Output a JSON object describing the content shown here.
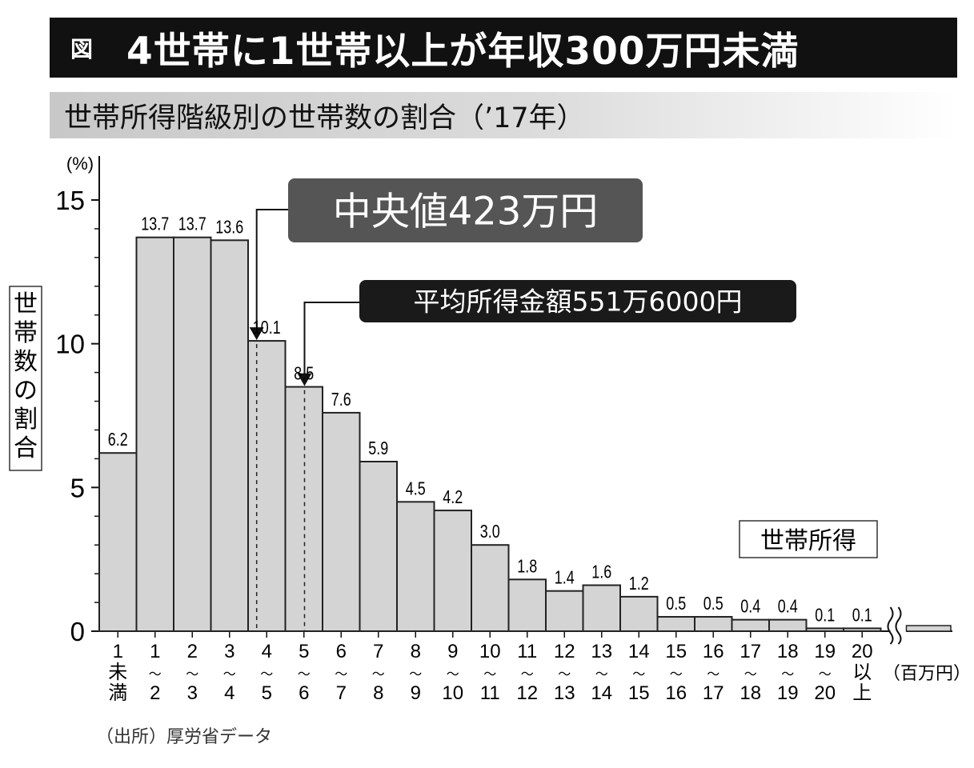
{
  "header": {
    "tag": "図",
    "title": "4世帯に1世帯以上が年収300万円未満",
    "subtitle": "世帯所得階級別の世帯数の割合（’17年）"
  },
  "source": "（出所）厚労省データ",
  "chart_data": {
    "type": "bar",
    "title": "世帯所得階級別の世帯数の割合（’17年）",
    "ylabel": "世帯数の割合",
    "yunit": "(%)",
    "xlabel": "世帯所得",
    "xunit": "（百万円）",
    "ylim": [
      0,
      15
    ],
    "yticks": [
      0,
      5,
      10,
      15
    ],
    "grid": false,
    "categories": [
      "1未満",
      "1〜2",
      "2〜3",
      "3〜4",
      "4〜5",
      "5〜6",
      "6〜7",
      "7〜8",
      "8〜9",
      "9〜10",
      "10〜11",
      "11〜12",
      "12〜13",
      "13〜14",
      "14〜15",
      "15〜16",
      "16〜17",
      "17〜18",
      "18〜19",
      "19〜20",
      "20以上"
    ],
    "tick_labels": [
      [
        "1",
        "未",
        "満"
      ],
      [
        "1",
        "〜",
        "2"
      ],
      [
        "2",
        "〜",
        "3"
      ],
      [
        "3",
        "〜",
        "4"
      ],
      [
        "4",
        "〜",
        "5"
      ],
      [
        "5",
        "〜",
        "6"
      ],
      [
        "6",
        "〜",
        "7"
      ],
      [
        "7",
        "〜",
        "8"
      ],
      [
        "8",
        "〜",
        "9"
      ],
      [
        "9",
        "〜",
        "10"
      ],
      [
        "10",
        "〜",
        "11"
      ],
      [
        "11",
        "〜",
        "12"
      ],
      [
        "12",
        "〜",
        "13"
      ],
      [
        "13",
        "〜",
        "14"
      ],
      [
        "14",
        "〜",
        "15"
      ],
      [
        "15",
        "〜",
        "16"
      ],
      [
        "16",
        "〜",
        "17"
      ],
      [
        "17",
        "〜",
        "18"
      ],
      [
        "18",
        "〜",
        "19"
      ],
      [
        "19",
        "〜",
        "20"
      ],
      [
        "20",
        "以",
        "上"
      ]
    ],
    "values": [
      6.2,
      13.7,
      13.7,
      13.6,
      10.1,
      8.5,
      7.6,
      5.9,
      4.5,
      4.2,
      3.0,
      1.8,
      1.4,
      1.6,
      1.2,
      0.5,
      0.5,
      0.4,
      0.4,
      0.1,
      0.1
    ],
    "annotations": [
      {
        "label": "中央値423万円",
        "x": 4.23
      },
      {
        "label": "平均所得金額551万6000円",
        "x": 5.516
      }
    ],
    "colors": {
      "bar": "#d4d4d4",
      "bar_stroke": "#222222",
      "annotation_box": "#555555",
      "annotation_box_dark": "#1a1a1a"
    }
  }
}
